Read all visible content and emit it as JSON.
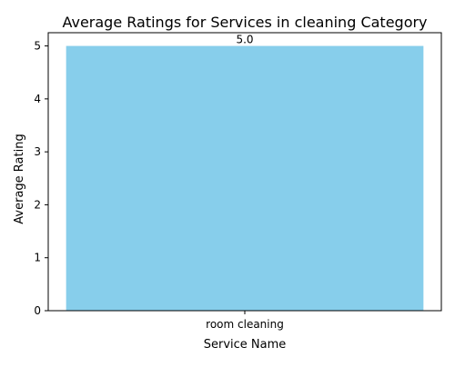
{
  "chart_data": {
    "type": "bar",
    "title": "Average Ratings for Services in cleaning Category",
    "xlabel": "Service Name",
    "ylabel": "Average Rating",
    "categories": [
      "room cleaning"
    ],
    "values": [
      5.0
    ],
    "data_labels": [
      "5.0"
    ],
    "ylim": [
      0,
      5.25
    ],
    "yticks": [
      0,
      1,
      2,
      3,
      4,
      5
    ],
    "ytick_labels": [
      "0",
      "1",
      "2",
      "3",
      "4",
      "5"
    ],
    "bar_color": "#87ceeb",
    "grid": false,
    "legend": "none"
  }
}
